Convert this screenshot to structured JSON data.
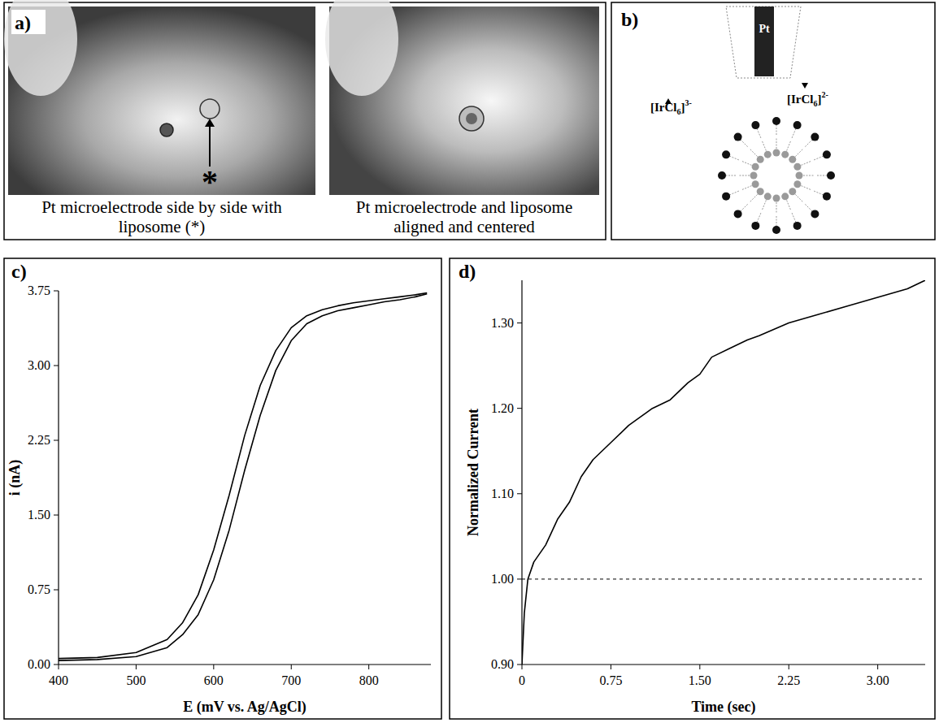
{
  "panels": {
    "a": {
      "letter": "a)",
      "photos": [
        {
          "caption": "Pt microelectrode side by side with liposome (*)",
          "marker": "*"
        },
        {
          "caption": "Pt microelectrode and liposome aligned and centered"
        }
      ]
    },
    "b": {
      "letter": "b)",
      "electrode": "Pt",
      "ions": [
        {
          "base": "[IrCl",
          "sub": "6",
          "end": "]",
          "charge": "3-"
        },
        {
          "base": "[IrCl",
          "sub": "6",
          "end": "]",
          "charge": "2-"
        }
      ]
    }
  },
  "chart_data": [
    {
      "type": "line",
      "panel_label": "c)",
      "x_label": "E (mV vs. Ag/AgCl)",
      "y_label": "i (nA)",
      "x": [
        400,
        450,
        500,
        540,
        560,
        580,
        600,
        620,
        640,
        660,
        680,
        700,
        720,
        740,
        760,
        780,
        800,
        820,
        840,
        860,
        875
      ],
      "series": [
        {
          "color": "#000000",
          "values": [
            0.06,
            0.07,
            0.12,
            0.25,
            0.42,
            0.7,
            1.15,
            1.7,
            2.3,
            2.8,
            3.15,
            3.38,
            3.5,
            3.56,
            3.6,
            3.63,
            3.65,
            3.67,
            3.69,
            3.71,
            3.73
          ]
        },
        {
          "color": "#000000",
          "values": [
            0.04,
            0.05,
            0.08,
            0.17,
            0.3,
            0.5,
            0.85,
            1.35,
            1.95,
            2.5,
            2.95,
            3.25,
            3.42,
            3.5,
            3.55,
            3.58,
            3.61,
            3.64,
            3.66,
            3.69,
            3.72
          ]
        }
      ],
      "xlim": [
        400,
        880
      ],
      "xticks": [
        400,
        500,
        600,
        700,
        800
      ],
      "ylim": [
        0,
        3.75
      ],
      "yticks": [
        {
          "value": 0,
          "label": "0.00"
        },
        {
          "value": 0.75,
          "label": "0.75"
        },
        {
          "value": 1.5,
          "label": "1.50"
        },
        {
          "value": 2.25,
          "label": "2.25"
        },
        {
          "value": 3,
          "label": "3.00"
        },
        {
          "value": 3.75,
          "label": "3.75"
        }
      ],
      "grid": false
    },
    {
      "type": "line",
      "panel_label": "d)",
      "x_label": "Time (sec)",
      "y_label": "Normalized Current",
      "x": [
        0,
        0.02,
        0.05,
        0.1,
        0.2,
        0.3,
        0.4,
        0.5,
        0.6,
        0.75,
        0.9,
        1.0,
        1.1,
        1.25,
        1.4,
        1.5,
        1.6,
        1.75,
        1.9,
        2.0,
        2.25,
        2.5,
        2.75,
        3.0,
        3.25,
        3.4
      ],
      "series": [
        {
          "color": "#000000",
          "values": [
            0.9,
            0.96,
            1.0,
            1.02,
            1.04,
            1.07,
            1.09,
            1.12,
            1.14,
            1.16,
            1.18,
            1.19,
            1.2,
            1.21,
            1.23,
            1.24,
            1.26,
            1.27,
            1.28,
            1.285,
            1.3,
            1.31,
            1.32,
            1.33,
            1.34,
            1.35
          ]
        }
      ],
      "baseline": 1.0,
      "xlim": [
        0,
        3.4
      ],
      "xticks": [
        0,
        0.75,
        {
          "value": 1.5,
          "label": "1.50"
        },
        2.25,
        {
          "value": 3,
          "label": "3.00"
        }
      ],
      "ylim": [
        0.9,
        1.35
      ],
      "yticks": [
        {
          "value": 0.9,
          "label": "0.90"
        },
        {
          "value": 1.0,
          "label": "1.00"
        },
        {
          "value": 1.1,
          "label": "1.10"
        },
        {
          "value": 1.2,
          "label": "1.20"
        },
        {
          "value": 1.3,
          "label": "1.30"
        }
      ],
      "grid": false
    }
  ]
}
